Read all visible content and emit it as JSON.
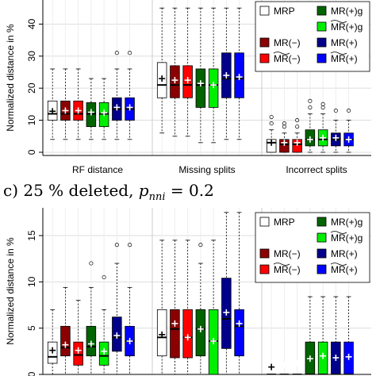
{
  "colors": {
    "MRP": "#ffffff",
    "MR(-)": "#8b0000",
    "MR~(-)": "#ff0000",
    "MR(+)g": "#006400",
    "MR~(+)g": "#00ee00",
    "MR(+)": "#00008b",
    "MR~(+)": "#0000ff"
  },
  "legend": [
    {
      "key": "MRP",
      "label": "MRP",
      "tilde": false,
      "suffix": ""
    },
    {
      "key": "MR(-)",
      "label": "MR",
      "tilde": false,
      "suffix": "(−)"
    },
    {
      "key": "MR~(-)",
      "label": "MR",
      "tilde": true,
      "suffix": "(−)"
    },
    {
      "key": "MR(+)g",
      "label": "MR",
      "tilde": false,
      "suffix": "(+)g"
    },
    {
      "key": "MR~(+)g",
      "label": "MR",
      "tilde": true,
      "suffix": "(+)g"
    },
    {
      "key": "MR(+)",
      "label": "MR",
      "tilde": false,
      "suffix": "(+)"
    },
    {
      "key": "MR~(+)",
      "label": "MR",
      "tilde": true,
      "suffix": "(+)"
    }
  ],
  "panel_b": {
    "title": {
      "prefix": "c) 25 % deleted, ",
      "var": "p",
      "sub": "nni",
      "suffix": " = 0.2"
    }
  },
  "chart_data": [
    {
      "type": "box",
      "ylabel": "Normalized distance in %",
      "ylim": [
        -1,
        49
      ],
      "yticks": [
        0,
        10,
        20,
        30,
        40
      ],
      "groups": [
        "RF distance",
        "Missing splits",
        "Incorrect splits"
      ],
      "series": [
        "MRP",
        "MR(-)",
        "MR~(-)",
        "MR(+)g",
        "MR~(+)g",
        "MR(+)",
        "MR~(+)"
      ],
      "grid": true,
      "legend_position": "top-right",
      "boxes": [
        {
          "group": 0,
          "series": "MRP",
          "whisker_low": 4,
          "q1": 10,
          "median": 12,
          "q3": 16,
          "whisker_high": 26,
          "mean": 12.8,
          "outliers": []
        },
        {
          "group": 0,
          "series": "MR(-)",
          "whisker_low": 4,
          "q1": 10,
          "median": 12,
          "q3": 16,
          "whisker_high": 26,
          "mean": 13,
          "outliers": []
        },
        {
          "group": 0,
          "series": "MR~(-)",
          "whisker_low": 4,
          "q1": 10,
          "median": 12,
          "q3": 16,
          "whisker_high": 26,
          "mean": 13,
          "outliers": []
        },
        {
          "group": 0,
          "series": "MR(+)g",
          "whisker_low": 4,
          "q1": 8,
          "median": 12,
          "q3": 15.5,
          "whisker_high": 23,
          "mean": 12.5,
          "outliers": []
        },
        {
          "group": 0,
          "series": "MR~(+)g",
          "whisker_low": 4,
          "q1": 8,
          "median": 12,
          "q3": 15.5,
          "whisker_high": 23,
          "mean": 12.3,
          "outliers": []
        },
        {
          "group": 0,
          "series": "MR(+)",
          "whisker_low": 4,
          "q1": 10,
          "median": 13.5,
          "q3": 17,
          "whisker_high": 26,
          "mean": 14,
          "outliers": [
            31
          ]
        },
        {
          "group": 0,
          "series": "MR~(+)",
          "whisker_low": 4,
          "q1": 10,
          "median": 13.5,
          "q3": 17,
          "whisker_high": 26,
          "mean": 14,
          "outliers": [
            31
          ]
        },
        {
          "group": 1,
          "series": "MRP",
          "whisker_low": 6,
          "q1": 17,
          "median": 21,
          "q3": 28,
          "whisker_high": 45,
          "mean": 23,
          "outliers": []
        },
        {
          "group": 1,
          "series": "MR(-)",
          "whisker_low": 5,
          "q1": 17,
          "median": 21,
          "q3": 27,
          "whisker_high": 45,
          "mean": 22.5,
          "outliers": []
        },
        {
          "group": 1,
          "series": "MR~(-)",
          "whisker_low": 5,
          "q1": 17,
          "median": 21,
          "q3": 27,
          "whisker_high": 45,
          "mean": 22.5,
          "outliers": []
        },
        {
          "group": 1,
          "series": "MR(+)g",
          "whisker_low": 3,
          "q1": 14,
          "median": 21,
          "q3": 26,
          "whisker_high": 45,
          "mean": 21.5,
          "outliers": []
        },
        {
          "group": 1,
          "series": "MR~(+)g",
          "whisker_low": 3,
          "q1": 14,
          "median": 21,
          "q3": 26,
          "whisker_high": 45,
          "mean": 21,
          "outliers": []
        },
        {
          "group": 1,
          "series": "MR(+)",
          "whisker_low": 4,
          "q1": 17,
          "median": 23,
          "q3": 31,
          "whisker_high": 45,
          "mean": 24,
          "outliers": []
        },
        {
          "group": 1,
          "series": "MR~(+)",
          "whisker_low": 4,
          "q1": 17,
          "median": 23,
          "q3": 31,
          "whisker_high": 45,
          "mean": 23.5,
          "outliers": []
        },
        {
          "group": 2,
          "series": "MRP",
          "whisker_low": 0,
          "q1": 0,
          "median": 3,
          "q3": 4,
          "whisker_high": 7,
          "mean": 3,
          "outliers": [
            9,
            11
          ]
        },
        {
          "group": 2,
          "series": "MR(-)",
          "whisker_low": 0,
          "q1": 0,
          "median": 2.5,
          "q3": 4,
          "whisker_high": 6,
          "mean": 3,
          "outliers": [
            8,
            9
          ]
        },
        {
          "group": 2,
          "series": "MR~(-)",
          "whisker_low": 0,
          "q1": 0,
          "median": 2.5,
          "q3": 4,
          "whisker_high": 6,
          "mean": 3,
          "outliers": [
            8,
            10
          ]
        },
        {
          "group": 2,
          "series": "MR(+)g",
          "whisker_low": 0,
          "q1": 2,
          "median": 4,
          "q3": 7,
          "whisker_high": 12,
          "mean": 4,
          "outliers": [
            14,
            16
          ]
        },
        {
          "group": 2,
          "series": "MR~(+)g",
          "whisker_low": 0,
          "q1": 2,
          "median": 4,
          "q3": 7,
          "whisker_high": 12,
          "mean": 4.5,
          "outliers": [
            14,
            15
          ]
        },
        {
          "group": 2,
          "series": "MR(+)",
          "whisker_low": 0,
          "q1": 2,
          "median": 4,
          "q3": 6,
          "whisker_high": 10,
          "mean": 4.5,
          "outliers": [
            13
          ]
        },
        {
          "group": 2,
          "series": "MR~(+)",
          "whisker_low": 0,
          "q1": 2,
          "median": 4,
          "q3": 6,
          "whisker_high": 10,
          "mean": 4,
          "outliers": [
            13
          ]
        }
      ]
    },
    {
      "type": "box",
      "ylabel": "Normalized distance in %",
      "ylim": [
        0,
        18
      ],
      "yticks": [
        0,
        5,
        10,
        15
      ],
      "series": [
        "MRP",
        "MR(-)",
        "MR~(-)",
        "MR(+)g",
        "MR~(+)g",
        "MR(+)",
        "MR~(+)"
      ],
      "grid": true,
      "legend_position": "top-right",
      "boxes": [
        {
          "group": 0,
          "series": "MRP",
          "whisker_low": 0,
          "q1": 1.2,
          "median": 1.9,
          "q3": 3.5,
          "whisker_high": 7,
          "mean": 2.6,
          "outliers": []
        },
        {
          "group": 0,
          "series": "MR(-)",
          "whisker_low": 0,
          "q1": 2,
          "median": 2.9,
          "q3": 5.2,
          "whisker_high": 9.4,
          "mean": 3.2,
          "outliers": []
        },
        {
          "group": 0,
          "series": "MR~(-)",
          "whisker_low": 0,
          "q1": 1,
          "median": 2.1,
          "q3": 3.5,
          "whisker_high": 8,
          "mean": 2.6,
          "outliers": []
        },
        {
          "group": 0,
          "series": "MR(+)g",
          "whisker_low": 0,
          "q1": 2,
          "median": 3.0,
          "q3": 5.2,
          "whisker_high": 9.4,
          "mean": 3.3,
          "outliers": [
            12
          ]
        },
        {
          "group": 0,
          "series": "MR~(+)g",
          "whisker_low": 0,
          "q1": 1,
          "median": 2.0,
          "q3": 3.5,
          "whisker_high": 7,
          "mean": 2.5,
          "outliers": [
            10.5
          ]
        },
        {
          "group": 0,
          "series": "MR(+)",
          "whisker_low": 0,
          "q1": 2.5,
          "median": 4.0,
          "q3": 6.2,
          "whisker_high": 12,
          "mean": 4.2,
          "outliers": [
            14
          ]
        },
        {
          "group": 0,
          "series": "MR~(+)",
          "whisker_low": 0,
          "q1": 2,
          "median": 3.6,
          "q3": 5.2,
          "whisker_high": 9.4,
          "mean": 3.6,
          "outliers": [
            14
          ]
        },
        {
          "group": 1,
          "series": "MRP",
          "whisker_low": 0,
          "q1": 2,
          "median": 4.0,
          "q3": 7,
          "whisker_high": 14.5,
          "mean": 4.3,
          "outliers": []
        },
        {
          "group": 1,
          "series": "MR(-)",
          "whisker_low": 0,
          "q1": 1.8,
          "median": 4.9,
          "q3": 7,
          "whisker_high": 14.5,
          "mean": 5.5,
          "outliers": []
        },
        {
          "group": 1,
          "series": "MR~(-)",
          "whisker_low": 0,
          "q1": 1.8,
          "median": 4.0,
          "q3": 7,
          "whisker_high": 14.5,
          "mean": 4.0,
          "outliers": []
        },
        {
          "group": 1,
          "series": "MR(+)g",
          "whisker_low": 0,
          "q1": 2,
          "median": 4.9,
          "q3": 7,
          "whisker_high": 12,
          "mean": 4.9,
          "outliers": [
            14
          ]
        },
        {
          "group": 1,
          "series": "MR~(+)g",
          "whisker_low": 0,
          "q1": 0,
          "median": 3.6,
          "q3": 7,
          "whisker_high": 14.5,
          "mean": 3.6,
          "outliers": []
        },
        {
          "group": 1,
          "series": "MR(+)",
          "whisker_low": 0,
          "q1": 2.8,
          "median": 6.0,
          "q3": 10.4,
          "whisker_high": 17.5,
          "mean": 6.7,
          "outliers": []
        },
        {
          "group": 1,
          "series": "MR~(+)",
          "whisker_low": 0,
          "q1": 2,
          "median": 5.2,
          "q3": 7,
          "whisker_high": 17.5,
          "mean": 5.5,
          "outliers": []
        },
        {
          "group": 2,
          "series": "MRP",
          "whisker_low": 0,
          "q1": 0,
          "median": 0,
          "q3": 0,
          "whisker_high": 0,
          "mean": 0.8,
          "outliers": []
        },
        {
          "group": 2,
          "series": "MR(-)",
          "whisker_low": 0,
          "q1": 0,
          "median": 0,
          "q3": 0,
          "whisker_high": 0,
          "mean": 1.0,
          "outliers": []
        },
        {
          "group": 2,
          "series": "MR~(-)",
          "whisker_low": 0,
          "q1": 0,
          "median": 0,
          "q3": 0,
          "whisker_high": 0,
          "mean": 1.2,
          "outliers": []
        },
        {
          "group": 2,
          "series": "MR(+)g",
          "whisker_low": 0,
          "q1": 0,
          "median": 0,
          "q3": 3.5,
          "whisker_high": 8.4,
          "mean": 1.7,
          "outliers": [
            10.5
          ]
        },
        {
          "group": 2,
          "series": "MR~(+)g",
          "whisker_low": 0,
          "q1": 0,
          "median": 0,
          "q3": 3.5,
          "whisker_high": 8.4,
          "mean": 2.0,
          "outliers": [
            10.5
          ]
        },
        {
          "group": 2,
          "series": "MR(+)",
          "whisker_low": 0,
          "q1": 0,
          "median": 0,
          "q3": 3.5,
          "whisker_high": 8.4,
          "mean": 1.8,
          "outliers": [
            10.5
          ]
        },
        {
          "group": 2,
          "series": "MR~(+)",
          "whisker_low": 0,
          "q1": 0,
          "median": 0,
          "q3": 3.5,
          "whisker_high": 8.4,
          "mean": 1.9,
          "outliers": [
            10.5
          ]
        }
      ]
    }
  ]
}
